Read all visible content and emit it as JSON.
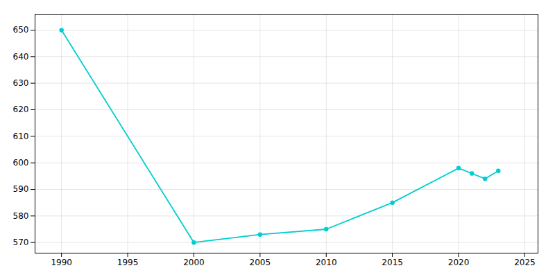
{
  "chart_data": {
    "type": "line",
    "x": [
      1990,
      2000,
      2005,
      2010,
      2015,
      2020,
      2021,
      2022,
      2023
    ],
    "values": [
      650,
      570,
      573,
      575,
      585,
      598,
      596,
      594,
      597
    ],
    "color": "#00CED1",
    "marker": "circle",
    "xlim": [
      1988,
      2026
    ],
    "ylim": [
      566,
      656
    ],
    "xticks": [
      1990,
      1995,
      2000,
      2005,
      2010,
      2015,
      2020,
      2025
    ],
    "yticks": [
      570,
      580,
      590,
      600,
      610,
      620,
      630,
      640,
      650
    ],
    "grid": true
  }
}
